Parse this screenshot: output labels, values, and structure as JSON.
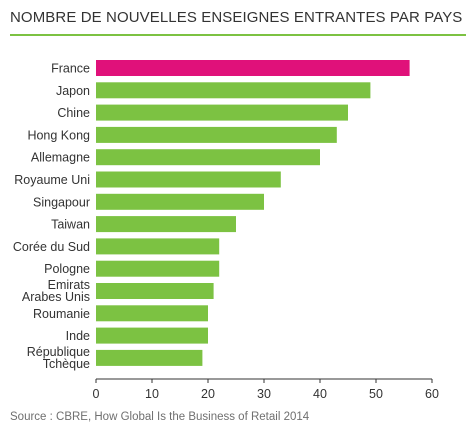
{
  "chart_data": {
    "type": "bar",
    "orientation": "horizontal",
    "title": "NOMBRE DE NOUVELLES ENSEIGNES ENTRANTES PAR PAYS",
    "categories": [
      [
        "France"
      ],
      [
        "Japon"
      ],
      [
        "Chine"
      ],
      [
        "Hong Kong"
      ],
      [
        "Allemagne"
      ],
      [
        "Royaume Uni"
      ],
      [
        "Singapour"
      ],
      [
        "Taiwan"
      ],
      [
        "Corée du Sud"
      ],
      [
        "Pologne"
      ],
      [
        "Emirats",
        "Arabes Unis"
      ],
      [
        "Roumanie"
      ],
      [
        "Inde"
      ],
      [
        "République",
        "Tchèque"
      ]
    ],
    "values": [
      56,
      49,
      45,
      43,
      40,
      33,
      30,
      25,
      22,
      22,
      21,
      20,
      20,
      19
    ],
    "xlim": [
      0,
      60
    ],
    "xticks": [
      0,
      10,
      20,
      30,
      40,
      50,
      60
    ],
    "grid": false,
    "colors": {
      "highlight": "#e0117a",
      "bar": "#7cc242",
      "axis": "#333333",
      "title_rule": "#7cc242"
    },
    "highlight_index": 0
  },
  "source": "Source : CBRE, How Global Is the Business of Retail 2014"
}
